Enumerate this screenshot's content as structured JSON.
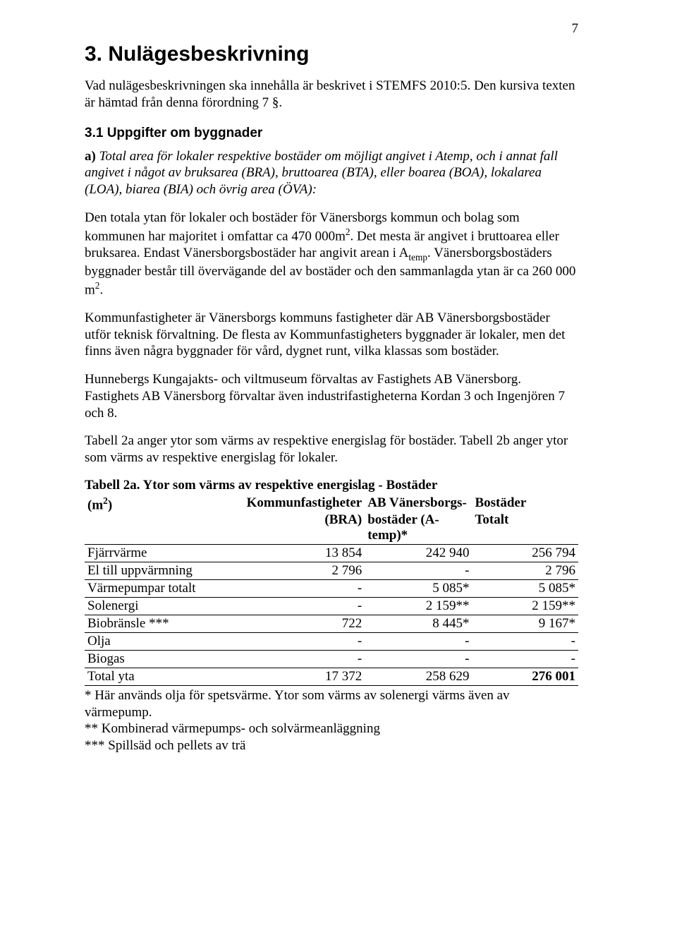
{
  "pageNumber": "7",
  "heading": "3. Nulägesbeskrivning",
  "intro": "Vad nulägesbeskrivningen ska innehålla är beskrivet i STEMFS 2010:5. Den kursiva texten är hämtad från denna förordning 7 §.",
  "subHeading": "3.1 Uppgifter om byggnader",
  "italicLead": "a)",
  "italicBody": "Total area för lokaler respektive bostäder om möjligt angivet i Atemp, och i annat fall angivet i något av bruksarea (BRA), bruttoarea (BTA), eller boarea (BOA), lokalarea (LOA), biarea (BIA) och övrig area (ÖVA):",
  "para1_part1": "Den totala ytan för lokaler och bostäder för Vänersborgs kommun och bolag som kommunen har majoritet i omfattar ca 470 000m",
  "para1_sup1": "2",
  "para1_part2": ". Det mesta är angivet i bruttoarea eller bruksarea. Endast Vänersborgsbostäder har angivit arean i A",
  "para1_sub": "temp",
  "para1_part3": ". Vänersborgsbostäders byggnader består till övervägande del av bostäder och den sammanlagda ytan är ca 260 000 m",
  "para1_sup2": "2",
  "para1_part4": ".",
  "para2": "Kommunfastigheter är Vänersborgs kommuns fastigheter där AB Vänersborgsbostäder utför teknisk förvaltning. De flesta av Kommunfastigheters byggnader är lokaler, men det finns även några byggnader för vård, dygnet runt, vilka klassas som bostäder.",
  "para3": "Hunnebergs Kungajakts- och viltmuseum förvaltas av Fastighets AB Vänersborg. Fastighets AB Vänersborg förvaltar även industrifastigheterna Kordan 3 och Ingenjören 7 och 8.",
  "para4": "Tabell 2a anger ytor som värms av respektive energislag för bostäder. Tabell 2b anger ytor som värms av respektive energislag för lokaler.",
  "tableCaption": "Tabell 2a. Ytor som värms av respektive energislag - Bostäder",
  "table": {
    "header": {
      "c0a": "(m",
      "c0sup": "2",
      "c0b": ")",
      "c1a": "Kommunfastigheter",
      "c1b": "(BRA)",
      "c2a": "AB Vänersborgs-",
      "c2b": "bostäder  (A-temp)*",
      "c3a": "Bostäder",
      "c3b": "Totalt"
    },
    "rows": [
      {
        "label": "Fjärrvärme",
        "c1": "13 854",
        "c2": "242 940",
        "c3": "256 794"
      },
      {
        "label": "El till uppvärmning",
        "c1": "2 796",
        "c2": "-",
        "c3": "2 796"
      },
      {
        "label": "Värmepumpar totalt",
        "c1": "-",
        "c2": "5 085*",
        "c3": "5 085*"
      },
      {
        "label": "Solenergi",
        "c1": "-",
        "c2": "2 159**",
        "c3": "2 159**"
      },
      {
        "label": "Biobränsle ***",
        "c1": "722",
        "c2": "8 445*",
        "c3": "9 167*"
      },
      {
        "label": "Olja",
        "c1": "-",
        "c2": "-",
        "c3": "-"
      },
      {
        "label": "Biogas",
        "c1": "-",
        "c2": "-",
        "c3": "-"
      }
    ],
    "totalRow": {
      "label": "Total yta",
      "c1": "17 372",
      "c2": "258 629",
      "c3": "276 001",
      "c3bold": true
    }
  },
  "footnotes": [
    "* Här används olja för spetsvärme. Ytor som värms av solenergi värms även av värmepump.",
    "** Kombinerad värmepumps- och solvärmeanläggning",
    "*** Spillsäd och pellets av trä"
  ]
}
